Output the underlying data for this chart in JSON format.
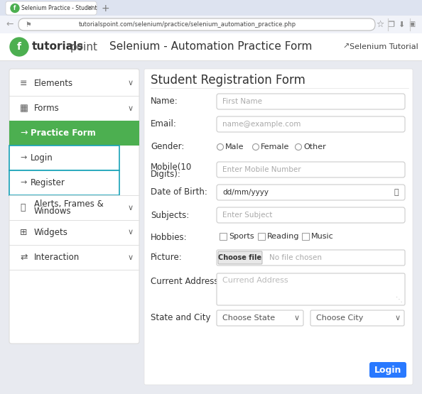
{
  "bg_color": "#e8eaf0",
  "tab_bar_bg": "#dde3f0",
  "addr_bar_bg": "#f1f3f9",
  "white": "#ffffff",
  "green": "#4caf50",
  "blue_btn": "#2979ff",
  "teal_border": "#17a2b8",
  "border_light": "#cccccc",
  "border_mid": "#bbbbbb",
  "text_dark": "#333333",
  "text_mid": "#555555",
  "text_placeholder": "#aaaaaa",
  "text_gray": "#888888",
  "url": "tutorialspoint.com/selenium/practice/selenium_automation_practice.php",
  "page_title": "Selenium - Automation Practice Form",
  "form_title": "Student Registration Form",
  "sidebar_labels": [
    "Elements",
    "Forms",
    "Practice Form",
    "Login",
    "Register",
    "Alerts, Frames &\nWindows",
    "Widgets",
    "Interaction"
  ]
}
